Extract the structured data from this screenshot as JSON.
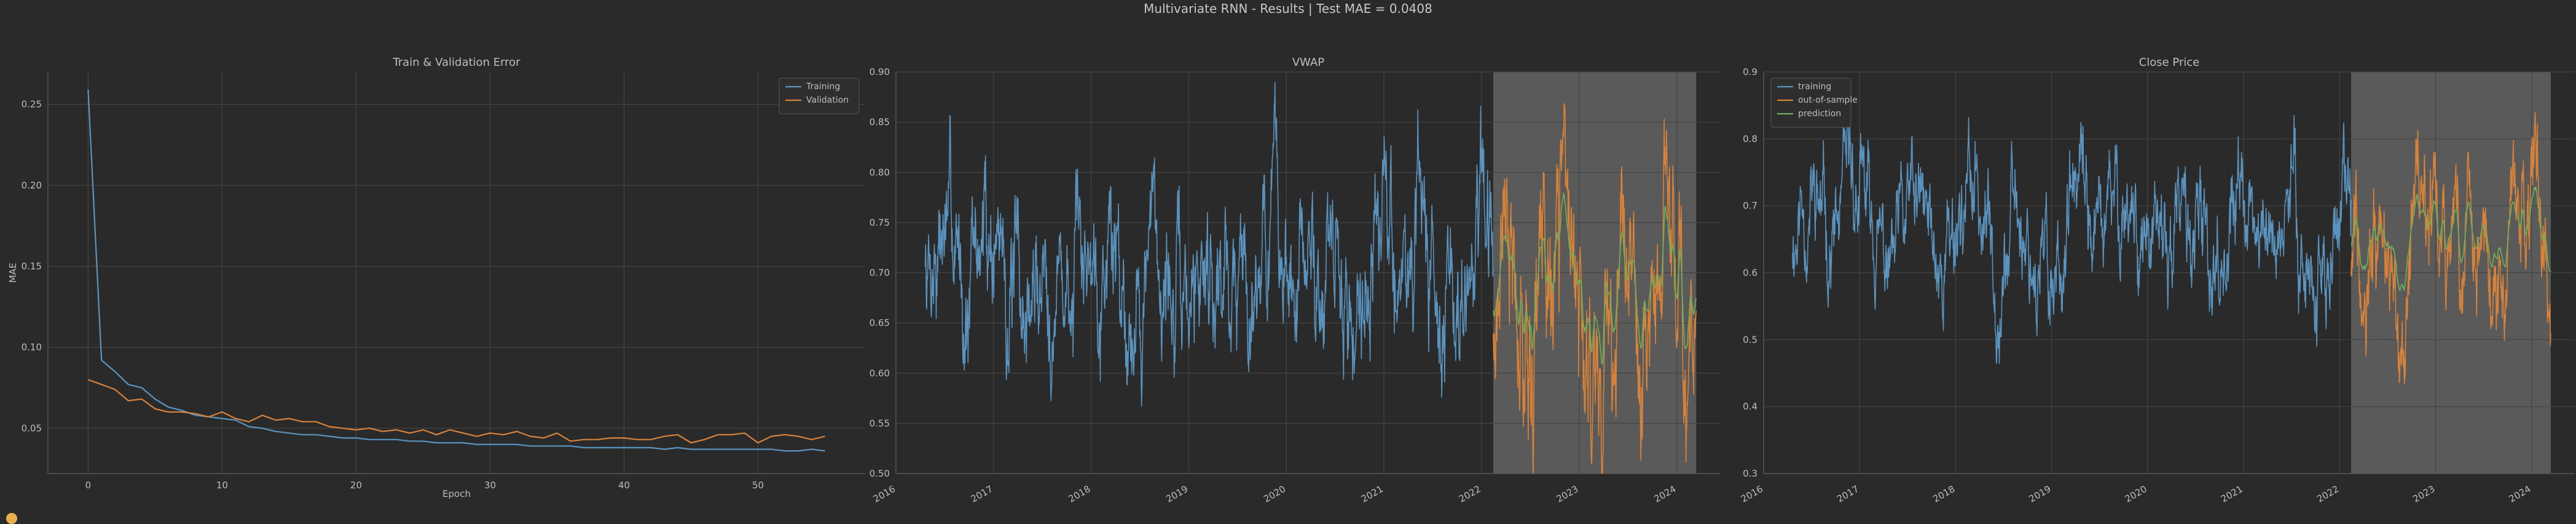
{
  "suptitle": "Multivariate RNN - Results | Test MAE = 0.0408",
  "colors": {
    "background": "#2a2a2a",
    "training": "#5b93bf",
    "validation": "#d7823a",
    "prediction": "#6fb05a",
    "grid": "#444444",
    "shade": "#5a5a5a"
  },
  "chart_data": [
    {
      "type": "line",
      "title": "Train & Validation Error",
      "xlabel": "Epoch",
      "ylabel": "MAE",
      "xlim": [
        -3,
        58
      ],
      "ylim": [
        0.022,
        0.27
      ],
      "xticks": [
        0,
        10,
        20,
        30,
        40,
        50
      ],
      "yticks": [
        0.05,
        0.1,
        0.15,
        0.2,
        0.25
      ],
      "ytick_labels": [
        "0.05",
        "0.10",
        "0.15",
        "0.20",
        "0.25"
      ],
      "grid": true,
      "legend": "top-right",
      "x": [
        0,
        1,
        2,
        3,
        4,
        5,
        6,
        7,
        8,
        9,
        10,
        11,
        12,
        13,
        14,
        15,
        16,
        17,
        18,
        19,
        20,
        21,
        22,
        23,
        24,
        25,
        26,
        27,
        28,
        29,
        30,
        31,
        32,
        33,
        34,
        35,
        36,
        37,
        38,
        39,
        40,
        41,
        42,
        43,
        44,
        45,
        46,
        47,
        48,
        49,
        50,
        51,
        52,
        53,
        54,
        55
      ],
      "series": [
        {
          "name": "Training",
          "color": "#5b93bf",
          "values": [
            0.259,
            0.092,
            0.085,
            0.077,
            0.075,
            0.068,
            0.063,
            0.061,
            0.058,
            0.057,
            0.056,
            0.055,
            0.051,
            0.05,
            0.048,
            0.047,
            0.046,
            0.046,
            0.045,
            0.044,
            0.044,
            0.043,
            0.043,
            0.043,
            0.042,
            0.042,
            0.041,
            0.041,
            0.041,
            0.04,
            0.04,
            0.04,
            0.04,
            0.039,
            0.039,
            0.039,
            0.039,
            0.038,
            0.038,
            0.038,
            0.038,
            0.038,
            0.038,
            0.037,
            0.038,
            0.037,
            0.037,
            0.037,
            0.037,
            0.037,
            0.037,
            0.037,
            0.036,
            0.036,
            0.037,
            0.036
          ]
        },
        {
          "name": "Validation",
          "color": "#d7823a",
          "values": [
            0.08,
            0.077,
            0.074,
            0.067,
            0.068,
            0.062,
            0.06,
            0.06,
            0.059,
            0.057,
            0.06,
            0.056,
            0.054,
            0.058,
            0.055,
            0.056,
            0.054,
            0.054,
            0.051,
            0.05,
            0.049,
            0.05,
            0.048,
            0.049,
            0.047,
            0.049,
            0.046,
            0.049,
            0.047,
            0.045,
            0.047,
            0.046,
            0.048,
            0.045,
            0.044,
            0.047,
            0.042,
            0.043,
            0.043,
            0.044,
            0.044,
            0.043,
            0.043,
            0.045,
            0.046,
            0.041,
            0.043,
            0.046,
            0.046,
            0.047,
            0.041,
            0.045,
            0.046,
            0.045,
            0.043,
            0.045
          ]
        }
      ]
    },
    {
      "type": "line",
      "title": "VWAP",
      "xlim": [
        2016.0,
        2024.45
      ],
      "ylim": [
        0.5,
        0.9
      ],
      "xticks": [
        2016,
        2017,
        2018,
        2019,
        2020,
        2021,
        2022,
        2023,
        2024
      ],
      "xtick_labels": [
        "2016",
        "2017",
        "2018",
        "2019",
        "2020",
        "2021",
        "2022",
        "2023",
        "2024"
      ],
      "yticks": [
        0.5,
        0.55,
        0.6,
        0.65,
        0.7,
        0.75,
        0.8,
        0.85,
        0.9
      ],
      "ytick_labels": [
        "0.50",
        "0.55",
        "0.60",
        "0.65",
        "0.70",
        "0.75",
        "0.80",
        "0.85",
        "0.90"
      ],
      "grid": true,
      "test_period": [
        2022.12,
        2024.2
      ],
      "series": [
        {
          "name": "training",
          "color": "#5b93bf",
          "x_range": [
            2016.3,
            2022.12
          ],
          "samples": 1500,
          "mean": 0.705,
          "amplitude": 0.1,
          "seed": 7
        },
        {
          "name": "out-of-sample",
          "color": "#d7823a",
          "x_range": [
            2022.12,
            2024.2
          ],
          "samples": 540,
          "mean": 0.68,
          "amplitude": 0.13,
          "seed": 21
        },
        {
          "name": "prediction",
          "color": "#6fb05a",
          "x_range": [
            2022.12,
            2024.2
          ],
          "samples": 540,
          "mean": 0.69,
          "amplitude": 0.07,
          "seed": 21,
          "smooth": true
        }
      ]
    },
    {
      "type": "line",
      "title": "Close Price",
      "xlim": [
        2016.0,
        2024.45
      ],
      "ylim": [
        0.3,
        0.9
      ],
      "xticks": [
        2016,
        2017,
        2018,
        2019,
        2020,
        2021,
        2022,
        2023,
        2024
      ],
      "xtick_labels": [
        "2016",
        "2017",
        "2018",
        "2019",
        "2020",
        "2021",
        "2022",
        "2023",
        "2024"
      ],
      "yticks": [
        0.3,
        0.4,
        0.5,
        0.6,
        0.7,
        0.8,
        0.9
      ],
      "ytick_labels": [
        "0.3",
        "0.4",
        "0.5",
        "0.6",
        "0.7",
        "0.8",
        "0.9"
      ],
      "grid": true,
      "legend": "top-left",
      "test_period": [
        2022.12,
        2024.2
      ],
      "series": [
        {
          "name": "training",
          "color": "#5b93bf",
          "x_range": [
            2016.3,
            2022.12
          ],
          "samples": 1500,
          "mean": 0.66,
          "amplitude": 0.11,
          "seed": 11
        },
        {
          "name": "out-of-sample",
          "color": "#d7823a",
          "x_range": [
            2022.12,
            2024.2
          ],
          "samples": 540,
          "mean": 0.63,
          "amplitude": 0.13,
          "seed": 33
        },
        {
          "name": "prediction",
          "color": "#6fb05a",
          "x_range": [
            2022.12,
            2024.2
          ],
          "samples": 540,
          "mean": 0.65,
          "amplitude": 0.06,
          "seed": 33,
          "smooth": true
        }
      ]
    }
  ]
}
